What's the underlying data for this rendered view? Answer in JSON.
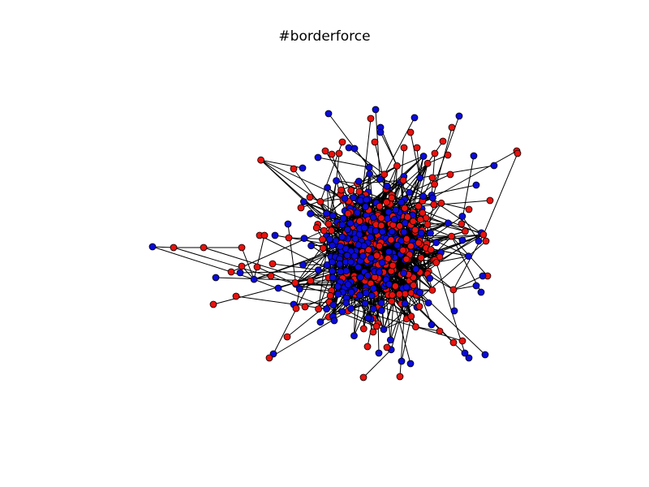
{
  "figure": {
    "title": "#borderforce"
  },
  "graph": {
    "node_colors": {
      "red": "#e8120e",
      "blue": "#0b0ad8"
    },
    "edge_color": "#000000",
    "node_outline": "#000000"
  }
}
